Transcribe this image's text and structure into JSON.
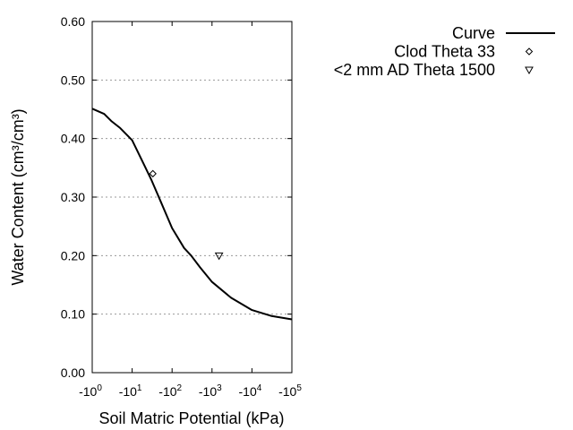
{
  "chart_data": {
    "type": "line",
    "xlabel": "Soil Matric Potential (kPa)",
    "ylabel": "Water Content (cm³/cm³)",
    "x_scale": "log (negative)",
    "xlim": [
      -1,
      -100000
    ],
    "ylim": [
      0,
      0.6
    ],
    "grid": "horizontal dotted",
    "legend_position": "top-right outside",
    "x_ticks": [
      {
        "base": "-10",
        "exp": "0"
      },
      {
        "base": "-10",
        "exp": "1"
      },
      {
        "base": "-10",
        "exp": "2"
      },
      {
        "base": "-10",
        "exp": "3"
      },
      {
        "base": "-10",
        "exp": "4"
      },
      {
        "base": "-10",
        "exp": "5"
      }
    ],
    "y_ticks": [
      "0.00",
      "0.10",
      "0.20",
      "0.30",
      "0.40",
      "0.50",
      "0.60"
    ],
    "series": [
      {
        "name": "Curve",
        "style": "line",
        "color": "#000000",
        "x": [
          -1,
          -2,
          -3,
          -5,
          -10,
          -20,
          -30,
          -50,
          -100,
          -200,
          -300,
          -500,
          -1000,
          -3000,
          -10000,
          -30000,
          -100000
        ],
        "y": [
          0.451,
          0.442,
          0.43,
          0.418,
          0.397,
          0.355,
          0.33,
          0.295,
          0.247,
          0.213,
          0.2,
          0.18,
          0.155,
          0.128,
          0.107,
          0.097,
          0.091
        ]
      },
      {
        "name": "Clod Theta 33",
        "style": "diamond",
        "x": [
          -33
        ],
        "y": [
          0.34
        ]
      },
      {
        "name": "<2 mm AD Theta 1500",
        "style": "triangle-down",
        "x": [
          -1500
        ],
        "y": [
          0.2
        ]
      }
    ]
  }
}
